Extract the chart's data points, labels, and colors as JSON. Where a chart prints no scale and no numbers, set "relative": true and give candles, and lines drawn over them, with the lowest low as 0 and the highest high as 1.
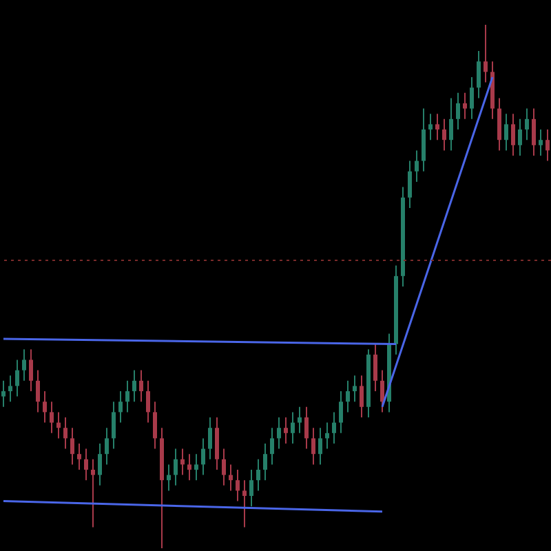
{
  "chart_data": {
    "type": "candlestick",
    "relative": true,
    "tick_labels": false,
    "categories": [
      null,
      null,
      null,
      null,
      null,
      null,
      null,
      null,
      null,
      null,
      null,
      null,
      null,
      null,
      null,
      null,
      null,
      null,
      null,
      null,
      null,
      null,
      null,
      null,
      null,
      null,
      null,
      null,
      null,
      null,
      null,
      null,
      null,
      null,
      null,
      null,
      null,
      null,
      null,
      null,
      null,
      null,
      null,
      null,
      null,
      null,
      null,
      null,
      null,
      null,
      null,
      null,
      null,
      null,
      null,
      null,
      null,
      null,
      null,
      null,
      null,
      null,
      null,
      null,
      null,
      null,
      null,
      null,
      null,
      null,
      null,
      null,
      null,
      null,
      null,
      null,
      null,
      null,
      null,
      null
    ],
    "ohlc": [
      [
        0.29,
        0.32,
        0.27,
        0.3
      ],
      [
        0.3,
        0.33,
        0.28,
        0.31
      ],
      [
        0.31,
        0.36,
        0.29,
        0.34
      ],
      [
        0.34,
        0.38,
        0.32,
        0.36
      ],
      [
        0.36,
        0.38,
        0.3,
        0.32
      ],
      [
        0.32,
        0.34,
        0.26,
        0.28
      ],
      [
        0.28,
        0.3,
        0.24,
        0.26
      ],
      [
        0.26,
        0.28,
        0.22,
        0.24
      ],
      [
        0.24,
        0.26,
        0.21,
        0.23
      ],
      [
        0.23,
        0.25,
        0.19,
        0.21
      ],
      [
        0.21,
        0.23,
        0.16,
        0.18
      ],
      [
        0.18,
        0.2,
        0.15,
        0.17
      ],
      [
        0.17,
        0.19,
        0.13,
        0.15
      ],
      [
        0.15,
        0.17,
        0.04,
        0.14
      ],
      [
        0.14,
        0.2,
        0.12,
        0.18
      ],
      [
        0.18,
        0.23,
        0.16,
        0.21
      ],
      [
        0.21,
        0.28,
        0.19,
        0.26
      ],
      [
        0.26,
        0.3,
        0.24,
        0.28
      ],
      [
        0.28,
        0.32,
        0.26,
        0.3
      ],
      [
        0.3,
        0.34,
        0.28,
        0.32
      ],
      [
        0.32,
        0.34,
        0.28,
        0.3
      ],
      [
        0.3,
        0.32,
        0.24,
        0.26
      ],
      [
        0.26,
        0.28,
        0.19,
        0.21
      ],
      [
        0.21,
        0.23,
        0,
        0.13
      ],
      [
        0.13,
        0.16,
        0.11,
        0.14
      ],
      [
        0.14,
        0.19,
        0.12,
        0.17
      ],
      [
        0.17,
        0.19,
        0.14,
        0.16
      ],
      [
        0.16,
        0.18,
        0.13,
        0.15
      ],
      [
        0.15,
        0.18,
        0.13,
        0.16
      ],
      [
        0.16,
        0.21,
        0.14,
        0.19
      ],
      [
        0.19,
        0.25,
        0.17,
        0.23
      ],
      [
        0.23,
        0.25,
        0.15,
        0.17
      ],
      [
        0.17,
        0.19,
        0.12,
        0.14
      ],
      [
        0.14,
        0.16,
        0.11,
        0.13
      ],
      [
        0.13,
        0.15,
        0.09,
        0.11
      ],
      [
        0.11,
        0.13,
        0.04,
        0.1
      ],
      [
        0.1,
        0.15,
        0.08,
        0.13
      ],
      [
        0.13,
        0.17,
        0.11,
        0.15
      ],
      [
        0.15,
        0.2,
        0.13,
        0.18
      ],
      [
        0.18,
        0.23,
        0.16,
        0.21
      ],
      [
        0.21,
        0.25,
        0.19,
        0.23
      ],
      [
        0.23,
        0.25,
        0.2,
        0.22
      ],
      [
        0.22,
        0.26,
        0.2,
        0.24
      ],
      [
        0.24,
        0.27,
        0.22,
        0.25
      ],
      [
        0.25,
        0.27,
        0.19,
        0.21
      ],
      [
        0.21,
        0.23,
        0.16,
        0.18
      ],
      [
        0.18,
        0.23,
        0.16,
        0.21
      ],
      [
        0.21,
        0.24,
        0.19,
        0.22
      ],
      [
        0.22,
        0.26,
        0.2,
        0.24
      ],
      [
        0.24,
        0.3,
        0.22,
        0.28
      ],
      [
        0.28,
        0.32,
        0.26,
        0.3
      ],
      [
        0.3,
        0.33,
        0.28,
        0.31
      ],
      [
        0.31,
        0.33,
        0.25,
        0.27
      ],
      [
        0.27,
        0.38,
        0.25,
        0.37
      ],
      [
        0.37,
        0.39,
        0.3,
        0.32
      ],
      [
        0.32,
        0.34,
        0.26,
        0.28
      ],
      [
        0.28,
        0.41,
        0.26,
        0.39
      ],
      [
        0.39,
        0.54,
        0.37,
        0.52
      ],
      [
        0.52,
        0.69,
        0.5,
        0.67
      ],
      [
        0.67,
        0.74,
        0.65,
        0.72
      ],
      [
        0.72,
        0.76,
        0.7,
        0.74
      ],
      [
        0.74,
        0.84,
        0.72,
        0.8
      ],
      [
        0.8,
        0.83,
        0.78,
        0.81
      ],
      [
        0.81,
        0.83,
        0.78,
        0.8
      ],
      [
        0.8,
        0.82,
        0.76,
        0.78
      ],
      [
        0.78,
        0.86,
        0.76,
        0.82
      ],
      [
        0.82,
        0.87,
        0.8,
        0.85
      ],
      [
        0.85,
        0.87,
        0.82,
        0.84
      ],
      [
        0.84,
        0.9,
        0.82,
        0.88
      ],
      [
        0.88,
        0.95,
        0.86,
        0.93
      ],
      [
        0.93,
        1,
        0.89,
        0.91
      ],
      [
        0.91,
        0.93,
        0.82,
        0.84
      ],
      [
        0.84,
        0.86,
        0.76,
        0.78
      ],
      [
        0.78,
        0.83,
        0.76,
        0.81
      ],
      [
        0.81,
        0.83,
        0.75,
        0.77
      ],
      [
        0.77,
        0.82,
        0.75,
        0.8
      ],
      [
        0.8,
        0.84,
        0.78,
        0.82
      ],
      [
        0.82,
        0.84,
        0.75,
        0.77
      ],
      [
        0.77,
        0.8,
        0.75,
        0.78
      ],
      [
        0.78,
        0.8,
        0.74,
        0.76
      ]
    ],
    "colors": [
      "#26806a",
      "#26806a",
      "#26806a",
      "#26806a",
      "#a83a4a",
      "#a83a4a",
      "#a83a4a",
      "#a83a4a",
      "#a83a4a",
      "#a83a4a",
      "#a83a4a",
      "#a83a4a",
      "#a83a4a",
      "#a83a4a",
      "#26806a",
      "#26806a",
      "#26806a",
      "#26806a",
      "#26806a",
      "#26806a",
      "#a83a4a",
      "#a83a4a",
      "#a83a4a",
      "#a83a4a",
      "#26806a",
      "#26806a",
      "#a83a4a",
      "#a83a4a",
      "#26806a",
      "#26806a",
      "#26806a",
      "#a83a4a",
      "#a83a4a",
      "#a83a4a",
      "#a83a4a",
      "#a83a4a",
      "#26806a",
      "#26806a",
      "#26806a",
      "#26806a",
      "#26806a",
      "#a83a4a",
      "#26806a",
      "#26806a",
      "#a83a4a",
      "#a83a4a",
      "#26806a",
      "#26806a",
      "#26806a",
      "#26806a",
      "#26806a",
      "#26806a",
      "#a83a4a",
      "#26806a",
      "#a83a4a",
      "#a83a4a",
      "#26806a",
      "#26806a",
      "#26806a",
      "#26806a",
      "#26806a",
      "#26806a",
      "#26806a",
      "#a83a4a",
      "#a83a4a",
      "#26806a",
      "#26806a",
      "#a83a4a",
      "#26806a",
      "#26806a",
      "#a83a4a",
      "#a83a4a",
      "#a83a4a",
      "#26806a",
      "#a83a4a",
      "#26806a",
      "#26806a",
      "#a83a4a",
      "#26806a",
      "#a83a4a"
    ],
    "series": [
      {
        "type": "line",
        "color": "#4a66e8",
        "values": [
          0.4,
          null,
          null,
          null,
          null,
          null,
          null,
          null,
          null,
          null,
          null,
          null,
          null,
          null,
          null,
          null,
          null,
          null,
          null,
          null,
          null,
          null,
          null,
          null,
          null,
          null,
          null,
          null,
          null,
          null,
          null,
          null,
          null,
          null,
          null,
          null,
          null,
          null,
          null,
          null,
          null,
          null,
          null,
          null,
          null,
          null,
          null,
          null,
          null,
          null,
          null,
          null,
          null,
          null,
          null,
          null,
          null,
          0.39,
          null,
          null,
          null,
          null,
          null,
          null,
          null,
          null,
          null,
          null,
          null,
          null,
          null,
          null,
          null,
          null,
          null,
          null,
          null,
          null,
          null,
          null
        ]
      },
      {
        "type": "line",
        "color": "#4a66e8",
        "values": [
          0.09,
          null,
          null,
          null,
          null,
          null,
          null,
          null,
          null,
          null,
          null,
          null,
          null,
          null,
          null,
          null,
          null,
          null,
          null,
          null,
          null,
          null,
          null,
          null,
          null,
          null,
          null,
          null,
          null,
          null,
          null,
          null,
          null,
          null,
          null,
          null,
          null,
          null,
          null,
          null,
          null,
          null,
          null,
          null,
          null,
          null,
          null,
          null,
          null,
          null,
          null,
          null,
          null,
          null,
          null,
          0.07,
          null,
          null,
          null,
          null,
          null,
          null,
          null,
          null,
          null,
          null,
          null,
          null,
          null,
          null,
          null,
          null,
          null,
          null,
          null,
          null,
          null,
          null,
          null,
          null
        ]
      },
      {
        "type": "line",
        "color": "#4a66e8",
        "values": [
          null,
          null,
          null,
          null,
          null,
          null,
          null,
          null,
          null,
          null,
          null,
          null,
          null,
          null,
          null,
          null,
          null,
          null,
          null,
          null,
          null,
          null,
          null,
          null,
          null,
          null,
          null,
          null,
          null,
          null,
          null,
          null,
          null,
          null,
          null,
          null,
          null,
          null,
          null,
          null,
          null,
          null,
          null,
          null,
          null,
          null,
          null,
          null,
          null,
          null,
          null,
          null,
          null,
          null,
          null,
          0.27,
          null,
          null,
          null,
          null,
          null,
          null,
          null,
          null,
          null,
          null,
          null,
          null,
          null,
          null,
          null,
          0.9,
          null,
          null,
          null,
          null,
          null,
          null,
          null,
          null
        ]
      }
    ],
    "ref_lines": [
      {
        "axis": "y",
        "value": 0.55,
        "color": "#7a2a2a",
        "line_style": "dotted"
      }
    ]
  }
}
